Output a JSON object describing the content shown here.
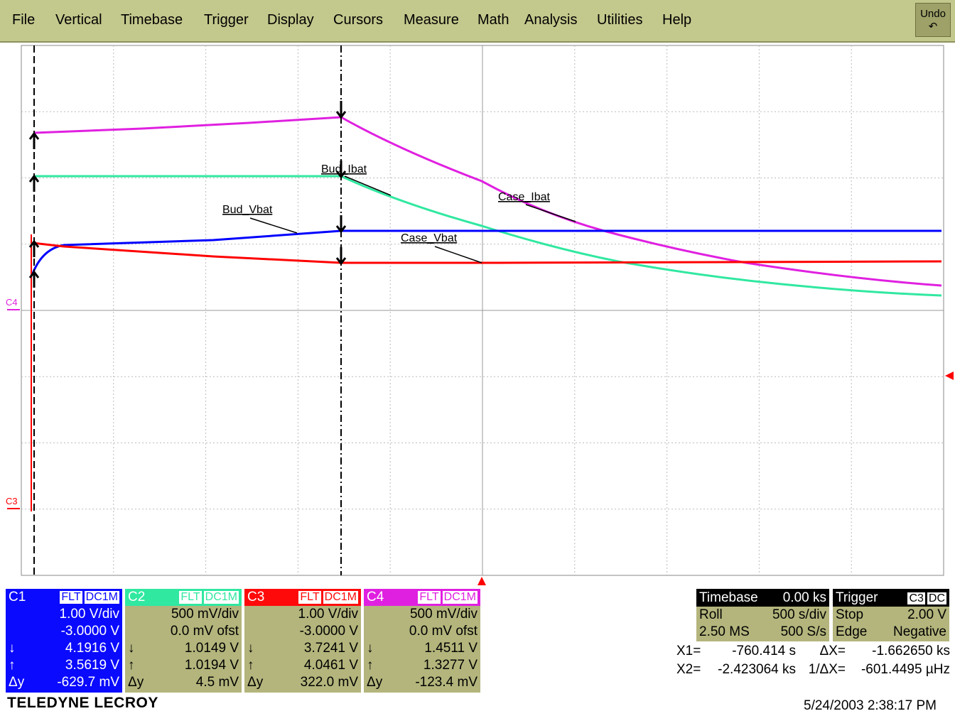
{
  "menu": [
    "File",
    "Vertical",
    "Timebase",
    "Trigger",
    "Display",
    "Cursors",
    "Measure",
    "Math",
    "Analysis",
    "Utilities",
    "Help"
  ],
  "undo": "Undo",
  "waveform": {
    "labels": [
      "Bud_Ibat",
      "Case_Ibat",
      "Bud_Vbat",
      "Case_Vbat"
    ],
    "markers": [
      "C4",
      "C3"
    ]
  },
  "channels": [
    {
      "name": "C1",
      "filter": "FLT",
      "coupling": "DC1M",
      "scale": "1.00 V/div",
      "offset": "-3.0000 V",
      "down": "4.1916 V",
      "up": "3.5619 V",
      "delta_label": "Δy",
      "delta": "-629.7 mV"
    },
    {
      "name": "C2",
      "filter": "FLT",
      "coupling": "DC1M",
      "scale": "500 mV/div",
      "offset": "0.0 mV ofst",
      "down": "1.0149 V",
      "up": "1.0194 V",
      "delta_label": "Δy",
      "delta": "4.5 mV"
    },
    {
      "name": "C3",
      "filter": "FLT",
      "coupling": "DC1M",
      "scale": "1.00 V/div",
      "offset": "-3.0000 V",
      "down": "3.7241 V",
      "up": "4.0461 V",
      "delta_label": "Δy",
      "delta": "322.0 mV"
    },
    {
      "name": "C4",
      "filter": "FLT",
      "coupling": "DC1M",
      "scale": "500 mV/div",
      "offset": "0.0 mV ofst",
      "down": "1.4511 V",
      "up": "1.3277 V",
      "delta_label": "Δy",
      "delta": "-123.4 mV"
    }
  ],
  "timebase": {
    "title": "Timebase",
    "delay": "0.00 ks",
    "mode": "Roll",
    "per_div": "500 s/div",
    "samples": "2.50 MS",
    "rate": "500 S/s"
  },
  "trigger": {
    "title": "Trigger",
    "source": "C3",
    "coupling": "DC",
    "mode": "Stop",
    "level": "2.00 V",
    "type": "Edge",
    "slope": "Negative"
  },
  "cursors": [
    {
      "label": "X1=",
      "value": "-760.414 s",
      "delta_label": "ΔX=",
      "delta": "-1.662650 ks"
    },
    {
      "label": "X2=",
      "value": "-2.423064 ks",
      "delta_label": "1/ΔX=",
      "delta": "-601.4495 µHz"
    }
  ],
  "footer": {
    "brand": "TELEDYNE LECROY",
    "timestamp": "5/24/2003 2:38:17 PM"
  }
}
